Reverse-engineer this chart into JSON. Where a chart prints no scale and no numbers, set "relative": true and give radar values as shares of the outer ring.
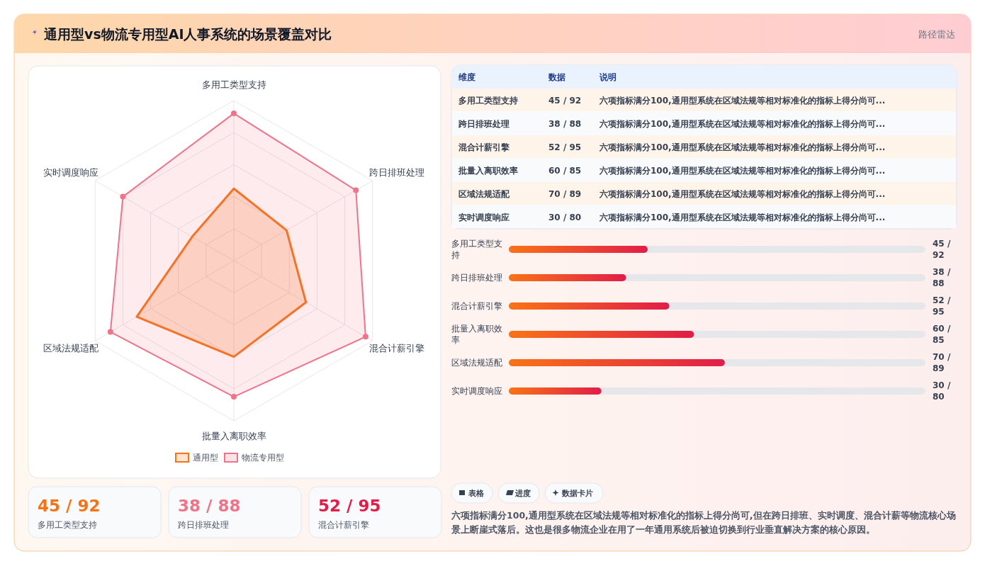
{
  "chart_data": [
    {
      "type": "other",
      "title": "通用型vs物流专用型AI人事系统的场景覆盖对比",
      "subtitle": "路径雷达"
    },
    {
      "type": "radar",
      "categories": [
        "多用工类型支持",
        "跨日排班处理",
        "混合计薪引擎",
        "批量入离职效率",
        "区域法规适配",
        "实时调度响应"
      ],
      "relative": true,
      "legend": "bottom",
      "series": [
        {
          "name": "通用型",
          "color": "#f97316",
          "marker": "none",
          "values": [
            0.45,
            0.38,
            0.52,
            0.6,
            0.7,
            0.3
          ]
        },
        {
          "name": "物流专用型",
          "color": "#f07389",
          "marker": "circle",
          "values": [
            0.92,
            0.88,
            0.95,
            0.85,
            0.89,
            0.8
          ]
        }
      ]
    },
    {
      "type": "bar",
      "orientation": "horizontal",
      "xlim": [
        0,
        135
      ],
      "categories": [
        "多用工类型支持",
        "跨日排班处理",
        "混合计薪引擎",
        "批量入离职效率",
        "区域法规适配",
        "实时调度响应"
      ],
      "color": "#f97316",
      "values": [
        45,
        38,
        52,
        60,
        70,
        30
      ],
      "value_labels": [
        "45 / 92",
        "38 / 88",
        "52 / 95",
        "60 / 85",
        "70 / 89",
        "30 / 80"
      ]
    },
    {
      "type": "other",
      "annotations": [
        "维度",
        "数据",
        "说明",
        "多用工类型支持",
        "45 / 92",
        "六项指标满分100,通用型系统在区域法规等相对标准化的指标上得分尚可...",
        "跨日排班处理",
        "38 / 88",
        "六项指标满分100,通用型系统在区域法规等相对标准化的指标上得分尚可...",
        "混合计薪引擎",
        "52 / 95",
        "六项指标满分100,通用型系统在区域法规等相对标准化的指标上得分尚可...",
        "批量入离职效率",
        "60 / 85",
        "六项指标满分100,通用型系统在区域法规等相对标准化的指标上得分尚可...",
        "区域法规适配",
        "70 / 89",
        "六项指标满分100,通用型系统在区域法规等相对标准化的指标上得分尚可...",
        "实时调度响应",
        "30 / 80",
        "六项指标满分100,通用型系统在区域法规等相对标准化的指标上得分尚可..."
      ]
    },
    {
      "type": "other",
      "colors": [
        "#f97316",
        "#f07389",
        "#e11d48"
      ],
      "annotations": [
        "45 / 92",
        "多用工类型支持",
        "38 / 88",
        "跨日排班处理",
        "52 / 95",
        "混合计薪引擎"
      ]
    },
    {
      "type": "other",
      "annotations": [
        "表格",
        "进度",
        "数据卡片",
        "六项指标满分100,通用型系统在区域法规等相对标准化的指标上得分尚可,但在跨日排班、实时调度、混合计薪等物流核心场景上断崖式落后。这也是很多物流企业在用了一年通用系统后被迫切换到行业垂直解决方案的核心原因。"
      ]
    }
  ]
}
